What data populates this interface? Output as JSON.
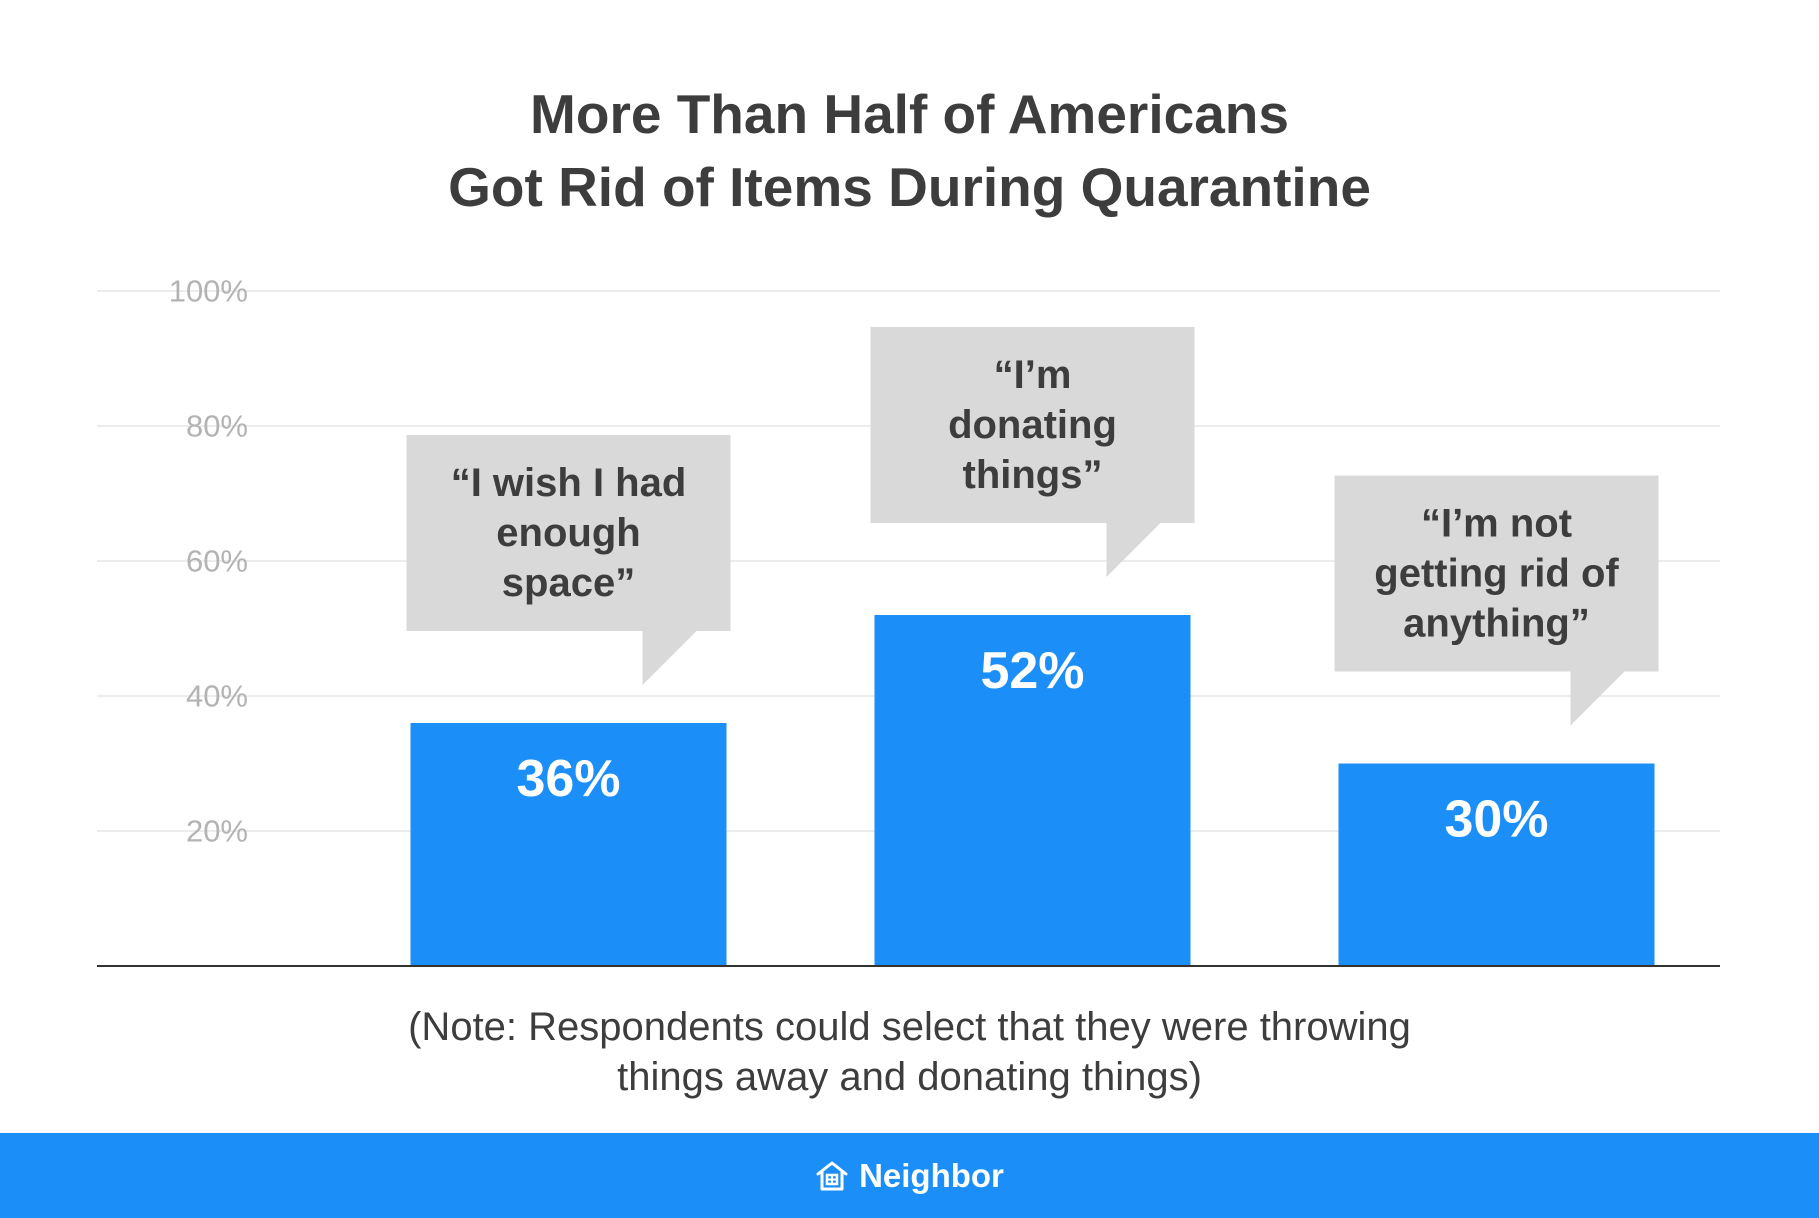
{
  "title_lines": [
    "More Than Half of Americans",
    "Got Rid of Items During Quarantine"
  ],
  "chart_data": {
    "type": "bar",
    "title": "More Than Half of Americans Got Rid of Items During Quarantine",
    "categories": [
      "“I wish I had enough space”",
      "“I’m donating things”",
      "“I’m not getting rid of anything”"
    ],
    "category_lines": [
      [
        "“I wish I had",
        "enough",
        "space”"
      ],
      [
        "“I’m",
        "donating",
        "things”"
      ],
      [
        "“I’m not",
        "getting rid of",
        "anything”"
      ]
    ],
    "values": [
      36,
      52,
      30
    ],
    "value_labels": [
      "36%",
      "52%",
      "30%"
    ],
    "ylim": [
      0,
      100
    ],
    "yticks": [
      20,
      40,
      60,
      80,
      100
    ],
    "ytick_labels": [
      "20%",
      "40%",
      "60%",
      "80%",
      "100%"
    ],
    "grid": true,
    "legend": "none",
    "colors": {
      "bar": "#1b8ff7",
      "callout": "#d9d9d9",
      "grid": "#e6e6e6",
      "tick": "#b3b3b3",
      "text": "#3d3d3d"
    }
  },
  "note_lines": [
    "(Note: Respondents could select that they were throwing",
    "things away and donating things)"
  ],
  "footer": {
    "brand": "Neighbor",
    "icon": "house-icon",
    "color": "#1b8ff7"
  }
}
